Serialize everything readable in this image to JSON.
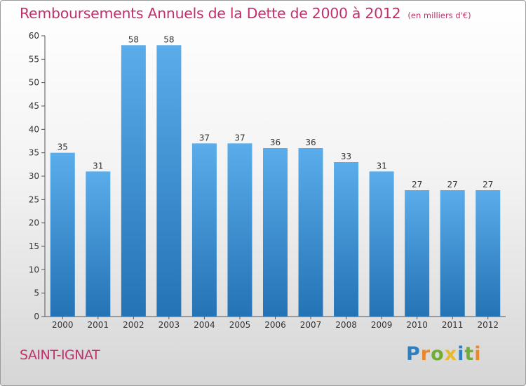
{
  "header": {
    "title": "Remboursements Annuels de la Dette de 2000 à 2012",
    "subtitle": "(en milliers d'€)"
  },
  "footer": {
    "city": "SAINT-IGNAT",
    "logo_letters": [
      {
        "ch": "P",
        "color": "#2f7fc0"
      },
      {
        "ch": "r",
        "color": "#e8892b"
      },
      {
        "ch": "o",
        "color": "#71ad36"
      },
      {
        "ch": "x",
        "color": "#e8b92b"
      },
      {
        "ch": "i",
        "color": "#2f7fc0"
      },
      {
        "ch": "t",
        "color": "#71ad36"
      },
      {
        "ch": "i",
        "color": "#e8892b"
      }
    ]
  },
  "colors": {
    "accent": "#c1306c",
    "bar_top": "#5aacea",
    "bar_bottom": "#2473b5"
  },
  "chart_data": {
    "type": "bar",
    "title": "Remboursements Annuels de la Dette de 2000 à 2012",
    "subtitle": "(en milliers d'€)",
    "categories": [
      "2000",
      "2001",
      "2002",
      "2003",
      "2004",
      "2005",
      "2006",
      "2007",
      "2008",
      "2009",
      "2010",
      "2011",
      "2012"
    ],
    "values": [
      35,
      31,
      58,
      58,
      37,
      37,
      36,
      36,
      33,
      31,
      27,
      27,
      27
    ],
    "ylim": [
      0,
      60
    ],
    "yticks": [
      0,
      5,
      10,
      15,
      20,
      25,
      30,
      35,
      40,
      45,
      50,
      55,
      60
    ],
    "grid": false,
    "legend": "none"
  }
}
